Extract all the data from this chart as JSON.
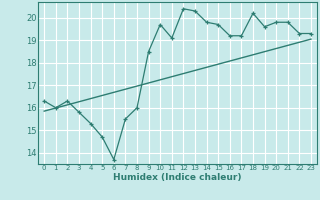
{
  "title": "",
  "xlabel": "Humidex (Indice chaleur)",
  "ylabel": "",
  "bg_color": "#c8eaea",
  "line_color": "#2e7d72",
  "grid_color": "#ffffff",
  "grid_minor_color": "#d0e8e8",
  "text_color": "#2e7d72",
  "xlim": [
    -0.5,
    23.5
  ],
  "ylim": [
    13.5,
    20.7
  ],
  "xticks": [
    0,
    1,
    2,
    3,
    4,
    5,
    6,
    7,
    8,
    9,
    10,
    11,
    12,
    13,
    14,
    15,
    16,
    17,
    18,
    19,
    20,
    21,
    22,
    23
  ],
  "yticks": [
    14,
    15,
    16,
    17,
    18,
    19,
    20
  ],
  "data_x": [
    0,
    1,
    2,
    3,
    4,
    5,
    6,
    7,
    8,
    9,
    10,
    11,
    12,
    13,
    14,
    15,
    16,
    17,
    18,
    19,
    20,
    21,
    22,
    23
  ],
  "data_y": [
    16.3,
    16.0,
    16.3,
    15.8,
    15.3,
    14.7,
    13.7,
    15.5,
    16.0,
    18.5,
    19.7,
    19.1,
    20.4,
    20.3,
    19.8,
    19.7,
    19.2,
    19.2,
    20.2,
    19.6,
    19.8,
    19.8,
    19.3,
    19.3
  ],
  "trend_x": [
    0,
    23
  ],
  "trend_y": [
    15.85,
    19.05
  ],
  "figsize": [
    3.2,
    2.0
  ],
  "dpi": 100
}
